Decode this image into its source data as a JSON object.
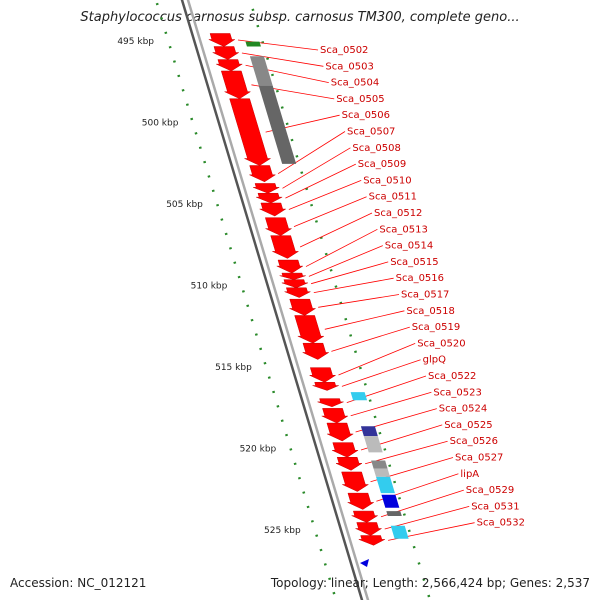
{
  "title": "Staphylococcus carnosus subsp. carnosus TM300, complete geno...",
  "accession": "Accession: NC_012121",
  "topology": "Topology: linear; Length: 2,566,424 bp; Genes: 2,537",
  "colors": {
    "gene": "#ff0000",
    "label": "#cc0000",
    "label_line": "#ff0000",
    "ruler_dots": "#2a8a2a",
    "backbone": "#888888",
    "cyan": "#33ccee",
    "navy": "#333399",
    "gray": "#888888",
    "darkgray": "#666666",
    "lightgray": "#bbbbbb",
    "blue": "#0000dd",
    "green": "#228822"
  },
  "ruler": {
    "unit": "kbp",
    "ticks": [
      {
        "kbp": 495,
        "label": "495 kbp"
      },
      {
        "kbp": 500,
        "label": "500 kbp"
      },
      {
        "kbp": 505,
        "label": "505 kbp"
      },
      {
        "kbp": 510,
        "label": "510 kbp"
      },
      {
        "kbp": 515,
        "label": "515 kbp"
      },
      {
        "kbp": 520,
        "label": "520 kbp"
      },
      {
        "kbp": 525,
        "label": "525 kbp"
      }
    ]
  },
  "genes": [
    {
      "name": "Sca_0502",
      "start": 494.6,
      "end": 495.4
    },
    {
      "name": "Sca_0503",
      "start": 495.4,
      "end": 496.2
    },
    {
      "name": "Sca_0504",
      "start": 496.2,
      "end": 496.9
    },
    {
      "name": "Sca_0505",
      "start": 496.9,
      "end": 498.6
    },
    {
      "name": "Sca_0506",
      "start": 498.6,
      "end": 502.7
    },
    {
      "name": "Sca_0507",
      "start": 502.7,
      "end": 503.7
    },
    {
      "name": "Sca_0508",
      "start": 503.8,
      "end": 504.4
    },
    {
      "name": "Sca_0509",
      "start": 504.4,
      "end": 505.0
    },
    {
      "name": "Sca_0510",
      "start": 505.0,
      "end": 505.8
    },
    {
      "name": "Sca_0511",
      "start": 505.9,
      "end": 507.0
    },
    {
      "name": "Sca_0512",
      "start": 507.0,
      "end": 508.4
    },
    {
      "name": "Sca_0513",
      "start": 508.5,
      "end": 509.3
    },
    {
      "name": "Sca_0514",
      "start": 509.3,
      "end": 509.7
    },
    {
      "name": "Sca_0515",
      "start": 509.7,
      "end": 510.2
    },
    {
      "name": "Sca_0516",
      "start": 510.2,
      "end": 510.8
    },
    {
      "name": "Sca_0517",
      "start": 510.9,
      "end": 511.9
    },
    {
      "name": "Sca_0518",
      "start": 511.9,
      "end": 513.6
    },
    {
      "name": "Sca_0519",
      "start": 513.6,
      "end": 514.6
    },
    {
      "name": "Sca_0520",
      "start": 515.1,
      "end": 516.0
    },
    {
      "name": "glpQ",
      "start": 516.0,
      "end": 516.5
    },
    {
      "name": "Sca_0522",
      "start": 517.0,
      "end": 517.5
    },
    {
      "name": "Sca_0523",
      "start": 517.6,
      "end": 518.5
    },
    {
      "name": "Sca_0524",
      "start": 518.5,
      "end": 519.6
    },
    {
      "name": "Sca_0525",
      "start": 519.7,
      "end": 520.6
    },
    {
      "name": "Sca_0526",
      "start": 520.6,
      "end": 521.4
    },
    {
      "name": "Sca_0527",
      "start": 521.5,
      "end": 522.7
    },
    {
      "name": "lipA",
      "start": 522.8,
      "end": 523.8
    },
    {
      "name": "Sca_0529",
      "start": 523.9,
      "end": 524.6
    },
    {
      "name": "Sca_0531",
      "start": 524.6,
      "end": 525.4
    },
    {
      "name": "Sca_0532",
      "start": 525.4,
      "end": 526.0
    }
  ],
  "features": [
    {
      "color": "green",
      "start": 495.1,
      "end": 495.4
    },
    {
      "color": "gray",
      "start": 496.0,
      "end": 497.8
    },
    {
      "color": "darkgray",
      "start": 497.8,
      "end": 502.6
    },
    {
      "color": "cyan",
      "start": 516.6,
      "end": 517.1
    },
    {
      "color": "navy",
      "start": 518.7,
      "end": 519.3
    },
    {
      "color": "lightgray",
      "start": 519.3,
      "end": 520.3
    },
    {
      "color": "gray",
      "start": 520.8,
      "end": 521.3
    },
    {
      "color": "lightgray",
      "start": 521.3,
      "end": 521.8
    },
    {
      "color": "cyan",
      "start": 521.8,
      "end": 522.8
    },
    {
      "color": "blue",
      "start": 522.9,
      "end": 523.7
    },
    {
      "color": "darkgray",
      "start": 523.9,
      "end": 524.2
    },
    {
      "color": "cyan",
      "start": 524.8,
      "end": 525.6
    }
  ]
}
